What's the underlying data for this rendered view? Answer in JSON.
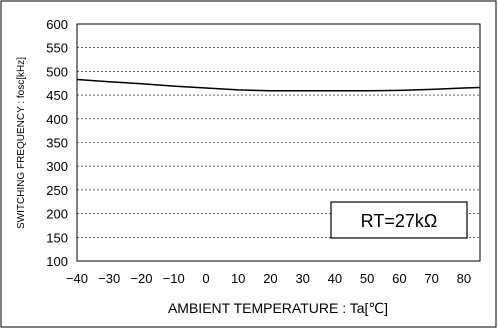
{
  "chart_data": {
    "type": "line",
    "xlabel": "AMBIENT TEMPERATURE : Ta[℃]",
    "ylabel": "SWITCHING FREQUENCY : fosc[kHz]",
    "annotation": "RT=27kΩ",
    "xlim": [
      -40,
      85
    ],
    "ylim": [
      100,
      600
    ],
    "x_ticks": [
      -40,
      -30,
      -20,
      -10,
      0,
      10,
      20,
      30,
      40,
      50,
      60,
      70,
      80
    ],
    "y_ticks": [
      100,
      150,
      200,
      250,
      300,
      350,
      400,
      450,
      500,
      550,
      600
    ],
    "grid": true,
    "legend": "none",
    "series": [
      {
        "x": [
          -40,
          -30,
          -20,
          -10,
          0,
          10,
          20,
          30,
          40,
          50,
          60,
          70,
          80,
          85
        ],
        "y": [
          483,
          478,
          474,
          469,
          465,
          461,
          459,
          459,
          459,
          459,
          460,
          462,
          465,
          466
        ]
      }
    ],
    "colors": {
      "line": "#000000",
      "grid": "#000000",
      "frame": "#000000"
    }
  }
}
